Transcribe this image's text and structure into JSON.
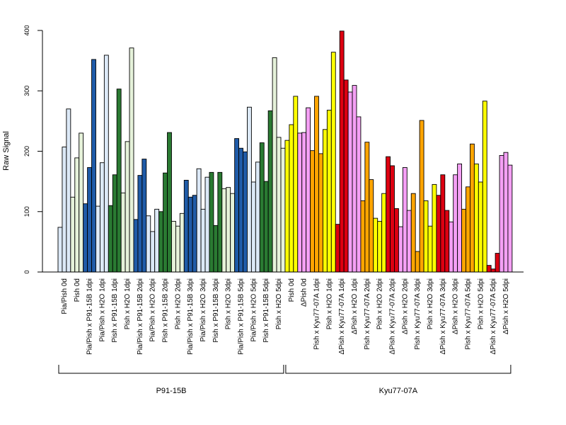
{
  "chart_data": {
    "type": "bar",
    "ylabel": "Raw Signal",
    "ylim": [
      0,
      400
    ],
    "yticks": [
      0,
      100,
      200,
      300,
      400
    ],
    "categories": [
      "Pia/Pish 0d",
      "Pish 0d",
      "Pia/Pish x P91-15B 1dpi",
      "Pia/Pish x H2O 1dpi",
      "Pish x P91-15B 1dpi",
      "Pish x H2O 1dpi",
      "Pia/Pish x P91-15B 2dpi",
      "Pia/Pish x H2O 2dpi",
      "Pish x P91-15B 2dpi",
      "Pish x H2O 2dpi",
      "Pia/Pish x P91-15B 3dpi",
      "Pia/Pish x H2O 3dpi",
      "Pish x P91-15B 3dpi",
      "Pish x H2O 3dpi",
      "Pia/Pish x P91-15B 5dpi",
      "Pia/Pish x H2O 5dpi",
      "Pish x P91-15B 5dpi",
      "Pish x H2O 5dpi",
      "Pish 0d",
      "ΔPish 0d",
      "Pish x Kyu77-07A 1dpi",
      "Pish x H2O 1dpi",
      "ΔPish x Kyu77-07A 1dpi",
      "ΔPish x H2O 1dpi",
      "Pish x Kyu77-07A 2dpi",
      "Pish x H2O 2dpi",
      "ΔPish x Kyu77-07A 2dpi",
      "ΔPish x H2O 2dpi",
      "Pish x Kyu77-07A 3dpi",
      "Pish x H2O 3dpi",
      "ΔPish x Kyu77-07A 3dpi",
      "ΔPish x H2O 3dpi",
      "Pish x Kyu77-07A 5dpi",
      "Pish x H2O 5dpi",
      "ΔPish x Kyu77-07A 5dpi",
      "ΔPish x H2O 5dpi"
    ],
    "colors": [
      "#dce9f7",
      "#e6f2da",
      "#1f5ba8",
      "#dce9f7",
      "#2a7a32",
      "#e6f2da",
      "#1f5ba8",
      "#dce9f7",
      "#2a7a32",
      "#e6f2da",
      "#1f5ba8",
      "#dce9f7",
      "#2a7a32",
      "#e6f2da",
      "#1f5ba8",
      "#dce9f7",
      "#2a7a32",
      "#e6f2da",
      "#ffff00",
      "#f5a0f5",
      "#ffa500",
      "#ffff00",
      "#dd0011",
      "#f5a0f5",
      "#ffa500",
      "#ffff00",
      "#dd0011",
      "#f5a0f5",
      "#ffa500",
      "#ffff00",
      "#dd0011",
      "#f5a0f5",
      "#ffa500",
      "#ffff00",
      "#dd0011",
      "#f5a0f5"
    ],
    "replicates": [
      [
        74,
        207,
        270
      ],
      [
        124,
        189,
        230
      ],
      [
        113,
        173,
        352
      ],
      [
        109,
        181,
        359
      ],
      [
        110,
        161,
        303
      ],
      [
        131,
        216,
        371
      ],
      [
        87,
        160,
        187
      ],
      [
        93,
        67,
        104
      ],
      [
        100,
        164,
        231
      ],
      [
        84,
        76,
        97
      ],
      [
        152,
        124,
        127
      ],
      [
        171,
        104,
        157
      ],
      [
        165,
        77,
        165
      ],
      [
        138,
        140,
        130
      ],
      [
        221,
        205,
        199
      ],
      [
        273,
        149,
        182
      ],
      [
        214,
        150,
        267
      ],
      [
        355,
        223,
        205
      ],
      [
        218,
        244,
        291
      ],
      [
        230,
        231,
        272
      ],
      [
        201,
        291,
        196
      ],
      [
        236,
        268,
        364
      ],
      [
        79,
        399,
        318
      ],
      [
        298,
        309,
        257
      ],
      [
        118,
        215,
        153
      ],
      [
        89,
        84,
        130
      ],
      [
        191,
        176,
        105
      ],
      [
        75,
        173,
        102
      ],
      [
        130,
        34,
        251
      ],
      [
        118,
        76,
        145
      ],
      [
        127,
        161,
        102
      ],
      [
        83,
        161,
        179
      ],
      [
        104,
        141,
        212
      ],
      [
        179,
        149,
        283
      ],
      [
        11,
        5,
        31
      ],
      [
        193,
        198,
        177
      ]
    ],
    "groups": [
      {
        "label": "P91-15B",
        "from": 0,
        "to": 17
      },
      {
        "label": "Kyu77-07A",
        "from": 18,
        "to": 35
      }
    ]
  }
}
